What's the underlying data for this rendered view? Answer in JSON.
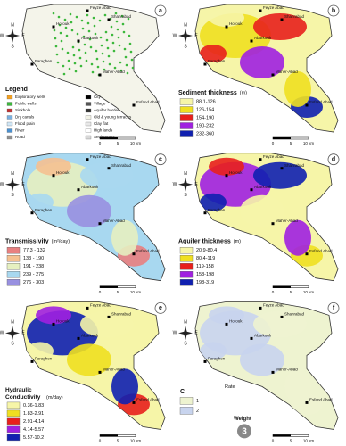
{
  "panels": [
    {
      "letter": "a",
      "title": "Legend",
      "places": [
        "Feyze Abad",
        "Shahrabad",
        "Horouk",
        "Abarkouh",
        "Faraghen",
        "Maher-Abad",
        "Esfand Abad"
      ],
      "legend": [
        {
          "label": "Exploratory wells",
          "color": "#f4a020"
        },
        {
          "label": "Public wells",
          "color": "#3cb83c"
        },
        {
          "label": "Sinkhole",
          "color": "#c03030"
        },
        {
          "label": "Dry canals",
          "color": "#7ab0e0"
        },
        {
          "label": "Flood plain",
          "color": "#cfe6f5"
        },
        {
          "label": "River",
          "color": "#4a90d0"
        },
        {
          "label": "Road",
          "color": "#909090"
        },
        {
          "label": "City",
          "color": "#000000"
        },
        {
          "label": "Village",
          "color": "#555555"
        },
        {
          "label": "Aquifer border",
          "color": "#333333"
        },
        {
          "label": "Old & young terraces",
          "color": "#f2f2e6"
        },
        {
          "label": "Clay flat",
          "color": "#e8e8e8"
        },
        {
          "label": "High lands",
          "color": "#ffffff"
        },
        {
          "label": "Settlements",
          "color": "#d8d8d8"
        }
      ]
    },
    {
      "letter": "b",
      "title": "Sediment thickness",
      "unit": "(m)",
      "places": [
        "Feyze Abad",
        "Shahrabad",
        "Horouk",
        "Abarkouh",
        "Faraghen",
        "Maher-Abad",
        "Esfand Abad"
      ],
      "legend": [
        {
          "label": "88.1-126",
          "color": "#f6f5a8"
        },
        {
          "label": "126-154",
          "color": "#f0e020"
        },
        {
          "label": "154-190",
          "color": "#e8201c"
        },
        {
          "label": "190-232",
          "color": "#a020e0"
        },
        {
          "label": "232-360",
          "color": "#1020b0"
        }
      ]
    },
    {
      "letter": "c",
      "title": "Transmissivity",
      "unit": "(m²/day)",
      "places": [
        "Feyze Abad",
        "Shahrabad",
        "Horouk",
        "Abarkouh",
        "Faraghen",
        "Maher-Abad",
        "Esfand Abad"
      ],
      "legend": [
        {
          "label": "77.3 - 132",
          "color": "#e88080"
        },
        {
          "label": "133 - 190",
          "color": "#f5c090"
        },
        {
          "label": "191 - 238",
          "color": "#e6f0c0"
        },
        {
          "label": "239 - 275",
          "color": "#a8d8f0"
        },
        {
          "label": "276 - 303",
          "color": "#9890e0"
        }
      ]
    },
    {
      "letter": "d",
      "title": "Aquifer thickness",
      "unit": "(m)",
      "places": [
        "Feyze Abad",
        "Shahrabad",
        "Horouk",
        "Abarkouh",
        "Faraghen",
        "Maher-Abad",
        "Esfand Abad"
      ],
      "legend": [
        {
          "label": "20.9-80.4",
          "color": "#f6f5a8"
        },
        {
          "label": "80.4-119",
          "color": "#f0e020"
        },
        {
          "label": "119-158",
          "color": "#e8201c"
        },
        {
          "label": "158-198",
          "color": "#a020e0"
        },
        {
          "label": "198-319",
          "color": "#1020b0"
        }
      ]
    },
    {
      "letter": "e",
      "title": "Hydraulic Conductivity",
      "unit": "(m/day)",
      "places": [
        "Feyze Abad",
        "Shahrabad",
        "Horouk",
        "Abarkouh",
        "Faraghen",
        "Maher-Abad",
        "Esfand Abad"
      ],
      "legend": [
        {
          "label": "0.36-1.83",
          "color": "#f6f5a8"
        },
        {
          "label": "1.83-2.91",
          "color": "#f0e020"
        },
        {
          "label": "2.91-4.14",
          "color": "#e8201c"
        },
        {
          "label": "4.14-5.57",
          "color": "#a020e0"
        },
        {
          "label": "5.57-10.2",
          "color": "#1020b0"
        }
      ]
    },
    {
      "letter": "f",
      "title": "C",
      "unit": "Rate",
      "weight_label": "Weight",
      "weight": "3",
      "places": [
        "Feyze Abad",
        "Shahrabad",
        "Horouk",
        "Abarkouh",
        "Faraghen",
        "Maher-Abad",
        "Esfand Abad"
      ],
      "legend": [
        {
          "label": "1",
          "color": "#eef3d0"
        },
        {
          "label": "2",
          "color": "#c8d4ee"
        }
      ]
    }
  ],
  "compass": [
    "N",
    "S",
    "W",
    "E"
  ],
  "scale": [
    "0",
    "5",
    "10 km"
  ]
}
